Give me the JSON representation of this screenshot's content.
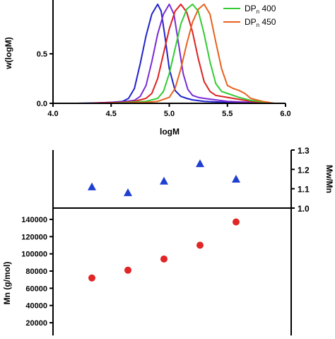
{
  "chart_data": [
    {
      "type": "line",
      "xlabel": "logM",
      "ylabel": "w(logM)",
      "xlim": [
        4.0,
        6.0
      ],
      "ylim": [
        0.0,
        1.0
      ],
      "x_ticks": [
        "4.0",
        "4.5",
        "5.0",
        "5.5",
        "6.0"
      ],
      "y_ticks": [
        "0.0",
        "0.5"
      ],
      "legend": {
        "placement": "top-right",
        "entries": [
          {
            "prefix": "DP",
            "sub": "n",
            "suffix": " 400",
            "color": "#33cc33"
          },
          {
            "prefix": "DP",
            "sub": "n",
            "suffix": " 450",
            "color": "#e8621e"
          }
        ]
      },
      "series": [
        {
          "color": "#2222cc",
          "x": [
            4.2,
            4.4,
            4.5,
            4.6,
            4.65,
            4.7,
            4.75,
            4.8,
            4.85,
            4.9,
            4.93,
            4.96,
            5.0,
            5.05,
            5.1,
            5.15,
            5.2,
            5.3,
            5.5,
            5.7,
            5.9
          ],
          "y": [
            0.0,
            0.005,
            0.01,
            0.02,
            0.05,
            0.15,
            0.4,
            0.68,
            0.9,
            1.0,
            0.93,
            0.7,
            0.35,
            0.13,
            0.07,
            0.05,
            0.035,
            0.02,
            0.01,
            0.005,
            0.0
          ]
        },
        {
          "color": "#7a2ad6",
          "x": [
            4.3,
            4.5,
            4.6,
            4.7,
            4.75,
            4.8,
            4.85,
            4.9,
            4.95,
            5.0,
            5.04,
            5.08,
            5.12,
            5.16,
            5.2,
            5.25,
            5.3,
            5.4,
            5.5,
            5.7,
            5.9
          ],
          "y": [
            0.0,
            0.01,
            0.015,
            0.03,
            0.07,
            0.18,
            0.42,
            0.7,
            0.9,
            1.0,
            0.9,
            0.6,
            0.3,
            0.14,
            0.08,
            0.06,
            0.05,
            0.035,
            0.02,
            0.01,
            0.0
          ]
        },
        {
          "color": "#dd2222",
          "x": [
            4.3,
            4.6,
            4.7,
            4.8,
            4.85,
            4.9,
            4.95,
            5.0,
            5.05,
            5.1,
            5.15,
            5.2,
            5.25,
            5.3,
            5.35,
            5.4,
            5.5,
            5.6,
            5.7,
            5.9
          ],
          "y": [
            0.0,
            0.01,
            0.02,
            0.05,
            0.1,
            0.25,
            0.5,
            0.75,
            0.93,
            1.0,
            0.92,
            0.72,
            0.45,
            0.22,
            0.12,
            0.08,
            0.06,
            0.04,
            0.02,
            0.0
          ]
        },
        {
          "color": "#33cc33",
          "x": [
            4.5,
            4.8,
            4.9,
            4.95,
            5.0,
            5.05,
            5.1,
            5.15,
            5.2,
            5.25,
            5.3,
            5.35,
            5.4,
            5.45,
            5.5,
            5.55,
            5.6,
            5.7,
            5.9
          ],
          "y": [
            0.0,
            0.02,
            0.05,
            0.12,
            0.3,
            0.55,
            0.8,
            0.95,
            1.0,
            0.93,
            0.7,
            0.42,
            0.2,
            0.12,
            0.1,
            0.08,
            0.06,
            0.03,
            0.0
          ]
        },
        {
          "color": "#e8621e",
          "x": [
            4.5,
            4.8,
            4.9,
            5.0,
            5.05,
            5.1,
            5.15,
            5.2,
            5.25,
            5.3,
            5.35,
            5.4,
            5.45,
            5.5,
            5.55,
            5.6,
            5.65,
            5.7,
            5.8,
            5.9
          ],
          "y": [
            0.0,
            0.01,
            0.02,
            0.06,
            0.15,
            0.35,
            0.6,
            0.82,
            0.95,
            1.0,
            0.9,
            0.62,
            0.35,
            0.18,
            0.15,
            0.13,
            0.1,
            0.05,
            0.02,
            0.0
          ]
        }
      ]
    },
    {
      "type": "scatter",
      "ylabel": "Mw/Mn",
      "ylim": [
        1.0,
        1.3
      ],
      "y_ticks": [
        "1.0",
        "1.1",
        "1.2",
        "1.3"
      ],
      "series": [
        {
          "color": "#1f3fd1",
          "marker": "triangle",
          "x": [
            1,
            2,
            3,
            4,
            5
          ],
          "y": [
            1.11,
            1.08,
            1.14,
            1.23,
            1.15
          ]
        }
      ]
    },
    {
      "type": "scatter",
      "ylabel": "Mn (g/mol)",
      "ylim": [
        0,
        150000
      ],
      "y_ticks": [
        "20000",
        "40000",
        "60000",
        "80000",
        "100000",
        "120000",
        "140000"
      ],
      "series": [
        {
          "color": "#e02626",
          "marker": "circle",
          "x": [
            1,
            2,
            3,
            4,
            5
          ],
          "y": [
            72000,
            81000,
            94000,
            110000,
            137000
          ]
        }
      ]
    }
  ]
}
